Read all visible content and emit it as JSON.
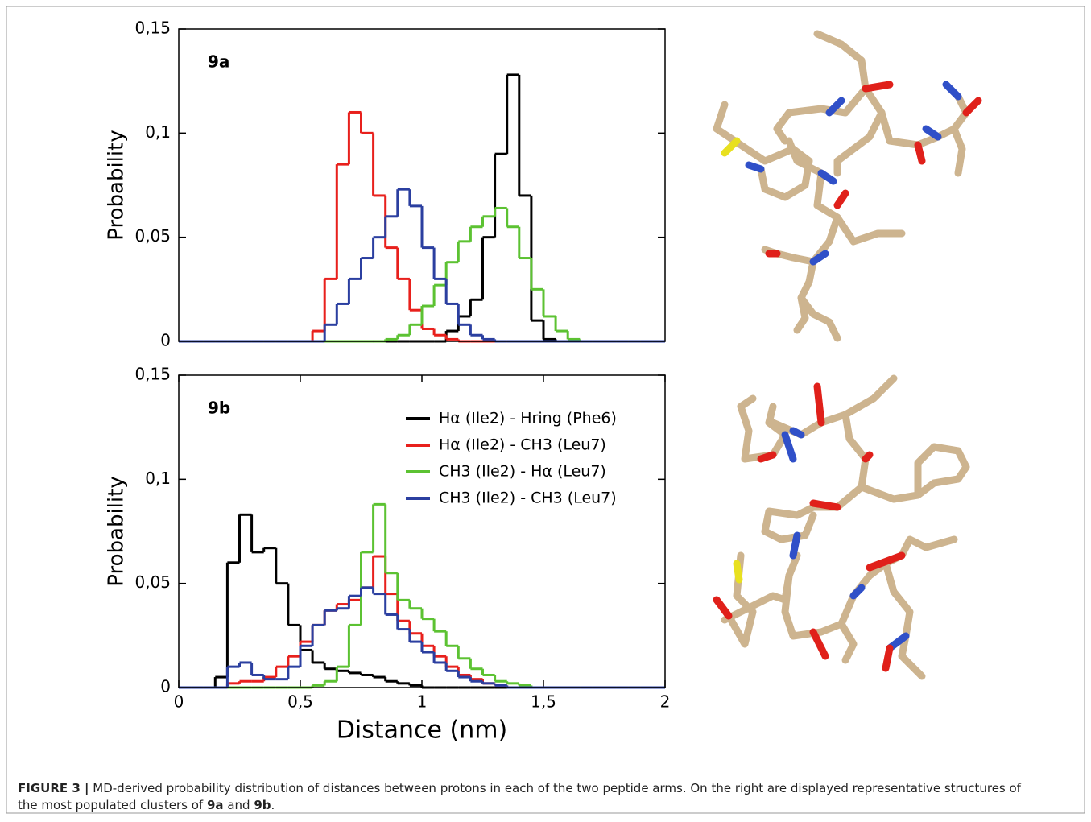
{
  "chart_data": [
    {
      "type": "step-histogram",
      "annotation": "9a",
      "ylabel": "Probability",
      "xlim": [
        0,
        2
      ],
      "ylim": [
        0,
        0.15
      ],
      "yticks": [
        0,
        {
          "value": 0.05,
          "label": "0,05"
        },
        {
          "value": 0.1,
          "label": "0,1"
        },
        {
          "value": 0.15,
          "label": "0,15"
        }
      ],
      "x": [
        0.025,
        0.075,
        0.125,
        0.175,
        0.225,
        0.275,
        0.325,
        0.375,
        0.425,
        0.475,
        0.525,
        0.575,
        0.625,
        0.675,
        0.725,
        0.775,
        0.825,
        0.875,
        0.925,
        0.975,
        1.025,
        1.075,
        1.125,
        1.175,
        1.225,
        1.275,
        1.325,
        1.375,
        1.425,
        1.475,
        1.525,
        1.575,
        1.625,
        1.675,
        1.725,
        1.775,
        1.825,
        1.875,
        1.925,
        1.975
      ],
      "series": [
        {
          "color": "#000000",
          "values": [
            0,
            0,
            0,
            0,
            0,
            0,
            0,
            0,
            0,
            0,
            0,
            0,
            0,
            0,
            0,
            0,
            0,
            0,
            0,
            0,
            0,
            0,
            0.005,
            0.012,
            0.02,
            0.05,
            0.09,
            0.128,
            0.07,
            0.01,
            0.001,
            0,
            0,
            0,
            0,
            0,
            0,
            0,
            0,
            0
          ]
        },
        {
          "color": "#e8201c",
          "values": [
            0,
            0,
            0,
            0,
            0,
            0,
            0,
            0,
            0,
            0,
            0,
            0.005,
            0.03,
            0.085,
            0.11,
            0.1,
            0.07,
            0.045,
            0.03,
            0.015,
            0.006,
            0.003,
            0.001,
            0,
            0,
            0,
            0,
            0,
            0,
            0,
            0,
            0,
            0,
            0,
            0,
            0,
            0,
            0,
            0,
            0
          ]
        },
        {
          "color": "#5cc232",
          "values": [
            0,
            0,
            0,
            0,
            0,
            0,
            0,
            0,
            0,
            0,
            0,
            0,
            0,
            0,
            0,
            0,
            0,
            0.001,
            0.003,
            0.008,
            0.017,
            0.027,
            0.038,
            0.048,
            0.055,
            0.06,
            0.064,
            0.055,
            0.04,
            0.025,
            0.012,
            0.005,
            0.001,
            0,
            0,
            0,
            0,
            0,
            0,
            0
          ]
        },
        {
          "color": "#2b3fa0",
          "values": [
            0,
            0,
            0,
            0,
            0,
            0,
            0,
            0,
            0,
            0,
            0,
            0,
            0.008,
            0.018,
            0.03,
            0.04,
            0.05,
            0.06,
            0.073,
            0.065,
            0.045,
            0.03,
            0.018,
            0.008,
            0.003,
            0.001,
            0,
            0,
            0,
            0,
            0,
            0,
            0,
            0,
            0,
            0,
            0,
            0,
            0,
            0
          ]
        }
      ]
    },
    {
      "type": "step-histogram",
      "annotation": "9b",
      "ylabel": "Probability",
      "xlabel": "Distance (nm)",
      "xlim": [
        0,
        2
      ],
      "ylim": [
        0,
        0.15
      ],
      "xticks": [
        0,
        {
          "value": 0.5,
          "label": "0,5"
        },
        1,
        {
          "value": 1.5,
          "label": "1,5"
        },
        2
      ],
      "yticks": [
        0,
        {
          "value": 0.05,
          "label": "0,05"
        },
        {
          "value": 0.1,
          "label": "0,1"
        },
        {
          "value": 0.15,
          "label": "0,15"
        }
      ],
      "legend": "upper right",
      "x": [
        0.025,
        0.075,
        0.125,
        0.175,
        0.225,
        0.275,
        0.325,
        0.375,
        0.425,
        0.475,
        0.525,
        0.575,
        0.625,
        0.675,
        0.725,
        0.775,
        0.825,
        0.875,
        0.925,
        0.975,
        1.025,
        1.075,
        1.125,
        1.175,
        1.225,
        1.275,
        1.325,
        1.375,
        1.425,
        1.475,
        1.525,
        1.575,
        1.625,
        1.675,
        1.725,
        1.775,
        1.825,
        1.875,
        1.925,
        1.975
      ],
      "series": [
        {
          "name": "Hα (Ile2) - Hring (Phe6)",
          "color": "#000000",
          "values": [
            0,
            0,
            0,
            0.005,
            0.06,
            0.083,
            0.065,
            0.067,
            0.05,
            0.03,
            0.018,
            0.012,
            0.009,
            0.008,
            0.007,
            0.006,
            0.005,
            0.003,
            0.002,
            0.001,
            0,
            0,
            0,
            0,
            0,
            0,
            0,
            0,
            0,
            0,
            0,
            0,
            0,
            0,
            0,
            0,
            0,
            0,
            0,
            0
          ]
        },
        {
          "name": "Hα (Ile2) - CH3 (Leu7)",
          "color": "#e8201c",
          "values": [
            0,
            0,
            0,
            0,
            0.002,
            0.003,
            0.003,
            0.005,
            0.01,
            0.015,
            0.022,
            0.03,
            0.037,
            0.04,
            0.042,
            0.048,
            0.063,
            0.045,
            0.032,
            0.026,
            0.02,
            0.015,
            0.01,
            0.006,
            0.004,
            0.002,
            0.001,
            0,
            0,
            0,
            0,
            0,
            0,
            0,
            0,
            0,
            0,
            0,
            0,
            0
          ]
        },
        {
          "name": "CH3 (Ile2) - Hα (Leu7)",
          "color": "#5cc232",
          "values": [
            0,
            0,
            0,
            0,
            0,
            0,
            0,
            0,
            0,
            0,
            0,
            0.001,
            0.003,
            0.01,
            0.03,
            0.065,
            0.088,
            0.055,
            0.042,
            0.038,
            0.033,
            0.027,
            0.02,
            0.014,
            0.009,
            0.006,
            0.003,
            0.002,
            0.001,
            0,
            0,
            0,
            0,
            0,
            0,
            0,
            0,
            0,
            0,
            0
          ]
        },
        {
          "name": "CH3 (Ile2) - CH3 (Leu7)",
          "color": "#2b3fa0",
          "values": [
            0,
            0,
            0,
            0,
            0.01,
            0.012,
            0.006,
            0.004,
            0.004,
            0.01,
            0.02,
            0.03,
            0.037,
            0.038,
            0.044,
            0.048,
            0.045,
            0.035,
            0.028,
            0.022,
            0.017,
            0.012,
            0.008,
            0.005,
            0.003,
            0.002,
            0.001,
            0,
            0,
            0,
            0,
            0,
            0,
            0,
            0,
            0,
            0,
            0,
            0,
            0
          ]
        }
      ]
    }
  ],
  "caption": {
    "label": "FIGURE 3 |",
    "line1": "MD-derived probability distribution of distances between protons in each of the two peptide arms. On the right are displayed representative structures of",
    "line2": "the most populated clusters of",
    "ref1": "9a",
    "joiner": "and",
    "ref2": "9b",
    "end": "."
  }
}
